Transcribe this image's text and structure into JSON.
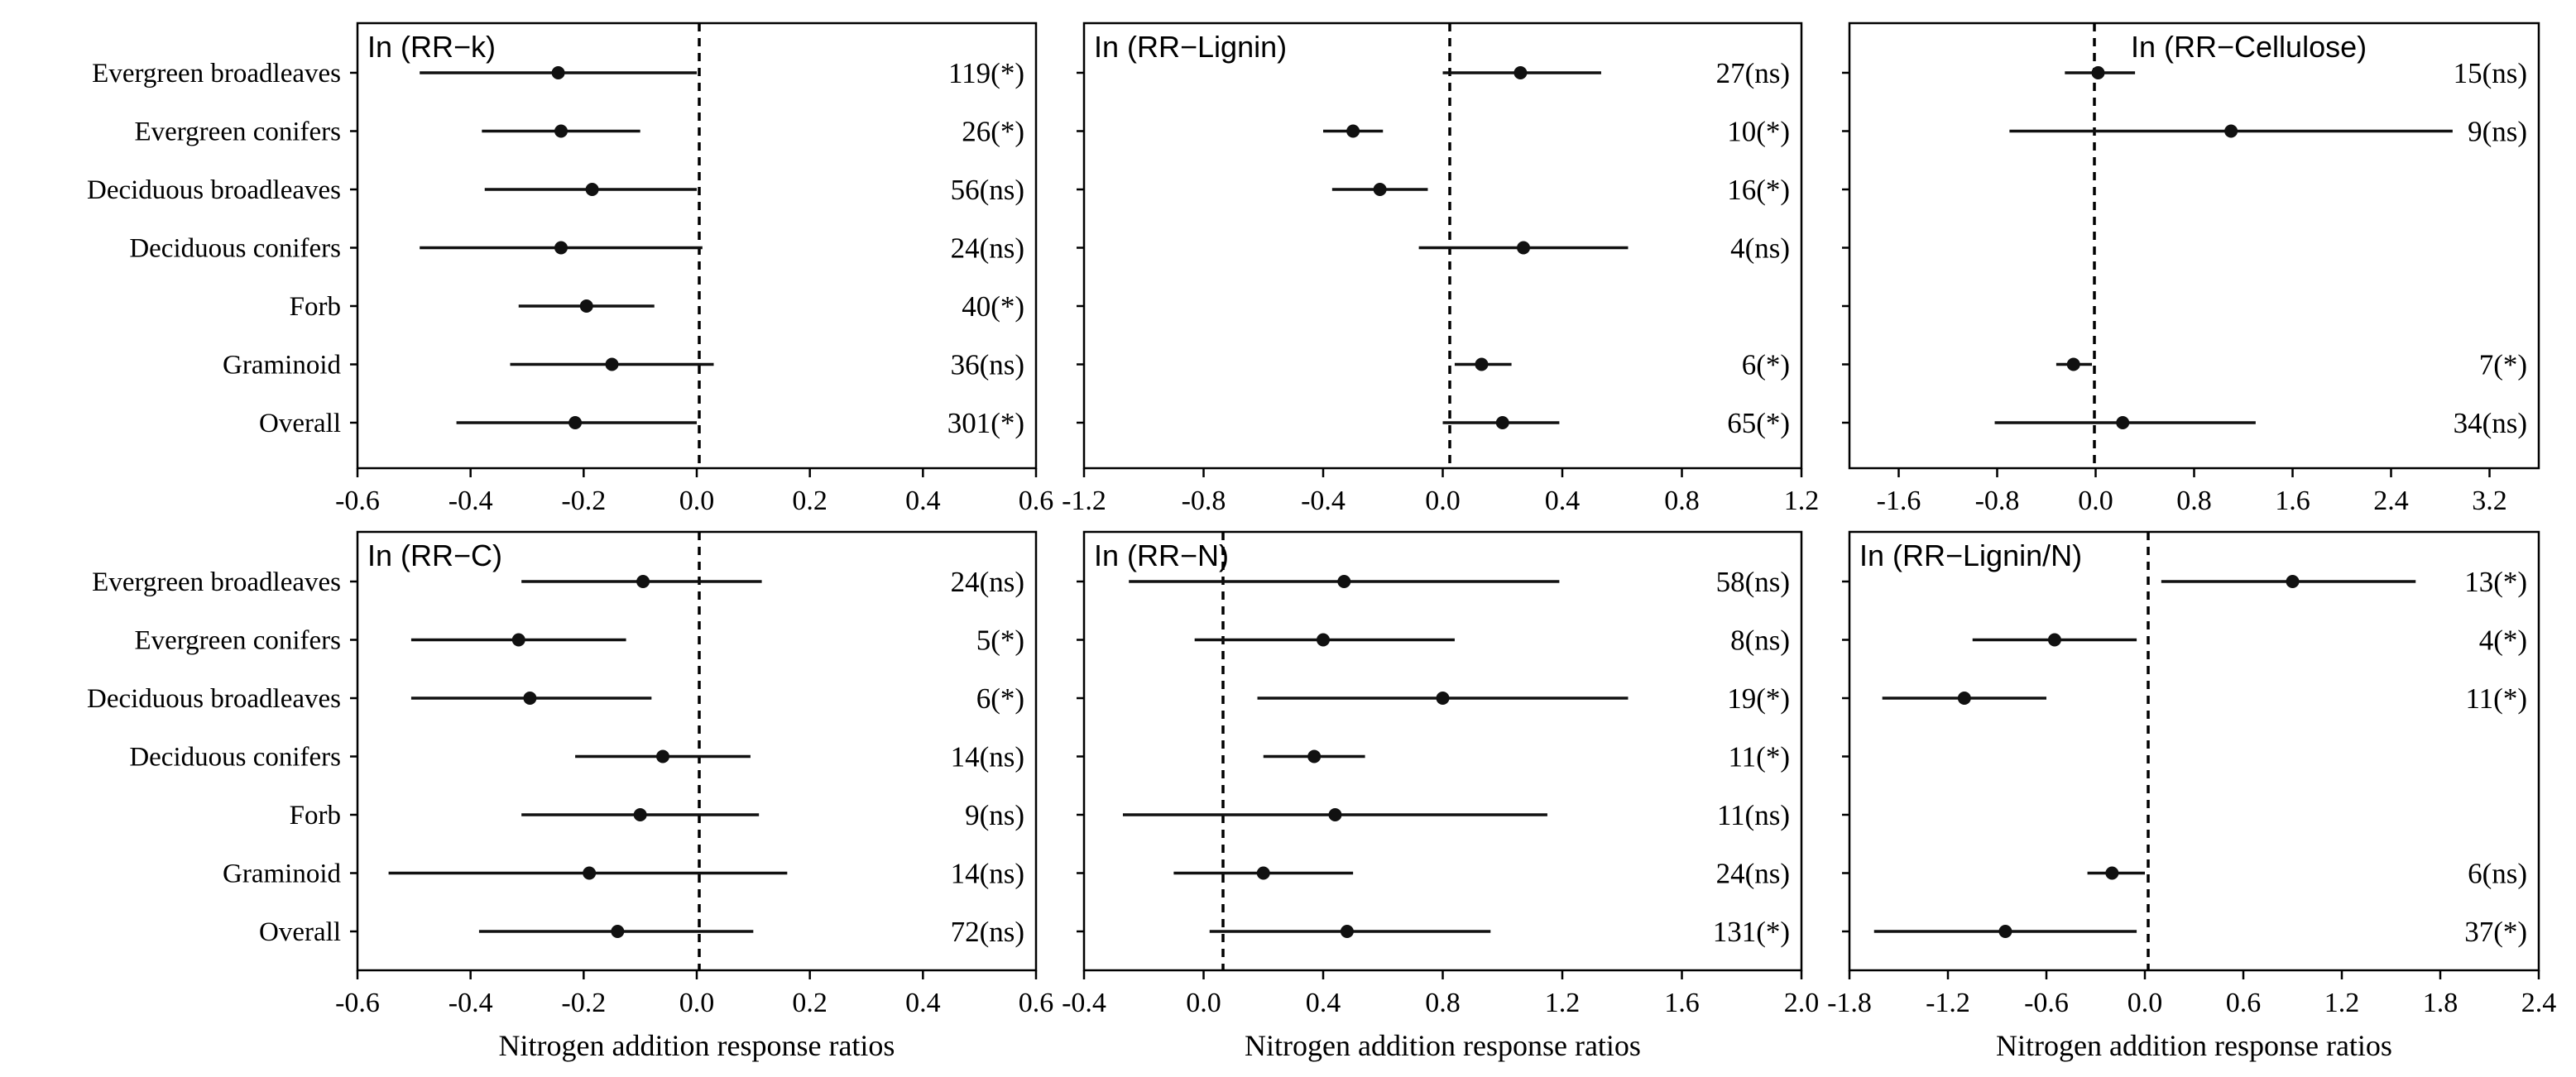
{
  "chart_data": [
    {
      "type": "forest",
      "title": "In (RR−k)",
      "xlabel": "",
      "xlim": [
        -0.6,
        0.6
      ],
      "xticks": [
        -0.6,
        -0.4,
        -0.2,
        0.0,
        0.2,
        0.4,
        0.6
      ],
      "xtick_labels": [
        "-0.6",
        "-0.4",
        "-0.2",
        "0.0",
        "0.2",
        "0.4",
        "0.6"
      ],
      "categories": [
        "Evergreen broadleaves",
        "Evergreen conifers",
        "Deciduous broadleaves",
        "Deciduous conifers",
        "Forb",
        "Graminoid",
        "Overall"
      ],
      "points": [
        {
          "mean": -0.245,
          "low": -0.49,
          "high": 0.0,
          "label": "119(*)"
        },
        {
          "mean": -0.24,
          "low": -0.38,
          "high": -0.1,
          "label": "26(*)"
        },
        {
          "mean": -0.185,
          "low": -0.375,
          "high": 0.0,
          "label": "56(ns)"
        },
        {
          "mean": -0.24,
          "low": -0.49,
          "high": 0.01,
          "label": "24(ns)"
        },
        {
          "mean": -0.195,
          "low": -0.315,
          "high": -0.075,
          "label": "40(*)"
        },
        {
          "mean": -0.15,
          "low": -0.33,
          "high": 0.03,
          "label": "36(ns)"
        },
        {
          "mean": -0.215,
          "low": -0.425,
          "high": 0.0,
          "label": "301(*)"
        }
      ]
    },
    {
      "type": "forest",
      "title": "In (RR−Lignin)",
      "xlabel": "",
      "xlim": [
        -1.2,
        1.2
      ],
      "xticks": [
        -1.2,
        -0.8,
        -0.4,
        0.0,
        0.4,
        0.8,
        1.2
      ],
      "xtick_labels": [
        "-1.2",
        "-0.8",
        "-0.4",
        "0.0",
        "0.4",
        "0.8",
        "1.2"
      ],
      "categories": [
        "Evergreen broadleaves",
        "Evergreen conifers",
        "Deciduous broadleaves",
        "Deciduous conifers",
        "Forb",
        "Graminoid",
        "Overall"
      ],
      "points": [
        {
          "mean": 0.26,
          "low": 0.0,
          "high": 0.53,
          "label": "27(ns)"
        },
        {
          "mean": -0.3,
          "low": -0.4,
          "high": -0.2,
          "label": "10(*)"
        },
        {
          "mean": -0.21,
          "low": -0.37,
          "high": -0.05,
          "label": "16(*)"
        },
        {
          "mean": 0.27,
          "low": -0.08,
          "high": 0.62,
          "label": "4(ns)"
        },
        {
          "mean": null,
          "low": null,
          "high": null,
          "label": ""
        },
        {
          "mean": 0.13,
          "low": 0.04,
          "high": 0.23,
          "label": "6(*)"
        },
        {
          "mean": 0.2,
          "low": 0.0,
          "high": 0.39,
          "label": "65(*)"
        }
      ]
    },
    {
      "type": "forest",
      "title": "In (RR−Cellulose)",
      "xlabel": "",
      "xlim": [
        -2.0,
        3.6
      ],
      "xticks": [
        -1.6,
        -0.8,
        0.0,
        0.8,
        1.6,
        2.4,
        3.2
      ],
      "xtick_labels": [
        "-1.6",
        "-0.8",
        "0.0",
        "0.8",
        "1.6",
        "2.4",
        "3.2"
      ],
      "categories": [
        "Evergreen broadleaves",
        "Evergreen conifers",
        "Deciduous broadleaves",
        "Deciduous conifers",
        "Forb",
        "Graminoid",
        "Overall"
      ],
      "points": [
        {
          "mean": 0.02,
          "low": -0.25,
          "high": 0.32,
          "label": "15(ns)"
        },
        {
          "mean": 1.1,
          "low": -0.7,
          "high": 2.9,
          "label": "9(ns)"
        },
        {
          "mean": null,
          "low": null,
          "high": null,
          "label": ""
        },
        {
          "mean": null,
          "low": null,
          "high": null,
          "label": ""
        },
        {
          "mean": null,
          "low": null,
          "high": null,
          "label": ""
        },
        {
          "mean": -0.18,
          "low": -0.32,
          "high": -0.03,
          "label": "7(*)"
        },
        {
          "mean": 0.22,
          "low": -0.82,
          "high": 1.3,
          "label": "34(ns)"
        }
      ]
    },
    {
      "type": "forest",
      "title": "In (RR−C)",
      "xlabel": "Nitrogen addition response ratios",
      "xlim": [
        -0.6,
        0.6
      ],
      "xticks": [
        -0.6,
        -0.4,
        -0.2,
        0.0,
        0.2,
        0.4,
        0.6
      ],
      "xtick_labels": [
        "-0.6",
        "-0.4",
        "-0.2",
        "0.0",
        "0.2",
        "0.4",
        "0.6"
      ],
      "categories": [
        "Evergreen broadleaves",
        "Evergreen conifers",
        "Deciduous broadleaves",
        "Deciduous conifers",
        "Forb",
        "Graminoid",
        "Overall"
      ],
      "points": [
        {
          "mean": -0.095,
          "low": -0.31,
          "high": 0.115,
          "label": "24(ns)"
        },
        {
          "mean": -0.315,
          "low": -0.505,
          "high": -0.125,
          "label": "5(*)"
        },
        {
          "mean": -0.295,
          "low": -0.505,
          "high": -0.08,
          "label": "6(*)"
        },
        {
          "mean": -0.06,
          "low": -0.215,
          "high": 0.095,
          "label": "14(ns)"
        },
        {
          "mean": -0.1,
          "low": -0.31,
          "high": 0.11,
          "label": "9(ns)"
        },
        {
          "mean": -0.19,
          "low": -0.545,
          "high": 0.16,
          "label": "14(ns)"
        },
        {
          "mean": -0.14,
          "low": -0.385,
          "high": 0.1,
          "label": "72(ns)"
        }
      ]
    },
    {
      "type": "forest",
      "title": "In (RR−N)",
      "xlabel": "Nitrogen addition response ratios",
      "xlim": [
        -0.4,
        2.0
      ],
      "xticks": [
        -0.4,
        0.0,
        0.4,
        0.8,
        1.2,
        1.6,
        2.0
      ],
      "xtick_labels": [
        "-0.4",
        "0.0",
        "0.4",
        "0.8",
        "1.2",
        "1.6",
        "2.0"
      ],
      "categories": [
        "Evergreen broadleaves",
        "Evergreen conifers",
        "Deciduous broadleaves",
        "Deciduous conifers",
        "Forb",
        "Graminoid",
        "Overall"
      ],
      "points": [
        {
          "mean": 0.47,
          "low": -0.25,
          "high": 1.19,
          "label": "58(ns)"
        },
        {
          "mean": 0.4,
          "low": -0.03,
          "high": 0.84,
          "label": "8(ns)"
        },
        {
          "mean": 0.8,
          "low": 0.18,
          "high": 1.42,
          "label": "19(*)"
        },
        {
          "mean": 0.37,
          "low": 0.2,
          "high": 0.54,
          "label": "11(*)"
        },
        {
          "mean": 0.44,
          "low": -0.27,
          "high": 1.15,
          "label": "11(ns)"
        },
        {
          "mean": 0.2,
          "low": -0.1,
          "high": 0.5,
          "label": "24(ns)"
        },
        {
          "mean": 0.48,
          "low": 0.02,
          "high": 0.96,
          "label": "131(*)"
        }
      ]
    },
    {
      "type": "forest",
      "title": "In (RR−Lignin/N)",
      "xlabel": "Nitrogen addition response ratios",
      "xlim": [
        -1.8,
        2.4
      ],
      "xticks": [
        -1.8,
        -1.2,
        -0.6,
        0.0,
        0.6,
        1.2,
        1.8,
        2.4
      ],
      "xtick_labels": [
        "-1.8",
        "-1.2",
        "-0.6",
        "0.0",
        "0.6",
        "1.2",
        "1.8",
        "2.4"
      ],
      "categories": [
        "Evergreen broadleaves",
        "Evergreen conifers",
        "Deciduous broadleaves",
        "Deciduous conifers",
        "Forb",
        "Graminoid",
        "Overall"
      ],
      "points": [
        {
          "mean": 0.9,
          "low": 0.1,
          "high": 1.65,
          "label": "13(*)"
        },
        {
          "mean": -0.55,
          "low": -1.05,
          "high": -0.05,
          "label": "4(*)"
        },
        {
          "mean": -1.1,
          "low": -1.6,
          "high": -0.6,
          "label": "11(*)"
        },
        {
          "mean": null,
          "low": null,
          "high": null,
          "label": ""
        },
        {
          "mean": null,
          "low": null,
          "high": null,
          "label": ""
        },
        {
          "mean": -0.2,
          "low": -0.35,
          "high": 0.0,
          "label": "6(ns)"
        },
        {
          "mean": -0.85,
          "low": -1.65,
          "high": -0.05,
          "label": "37(*)"
        }
      ]
    }
  ]
}
